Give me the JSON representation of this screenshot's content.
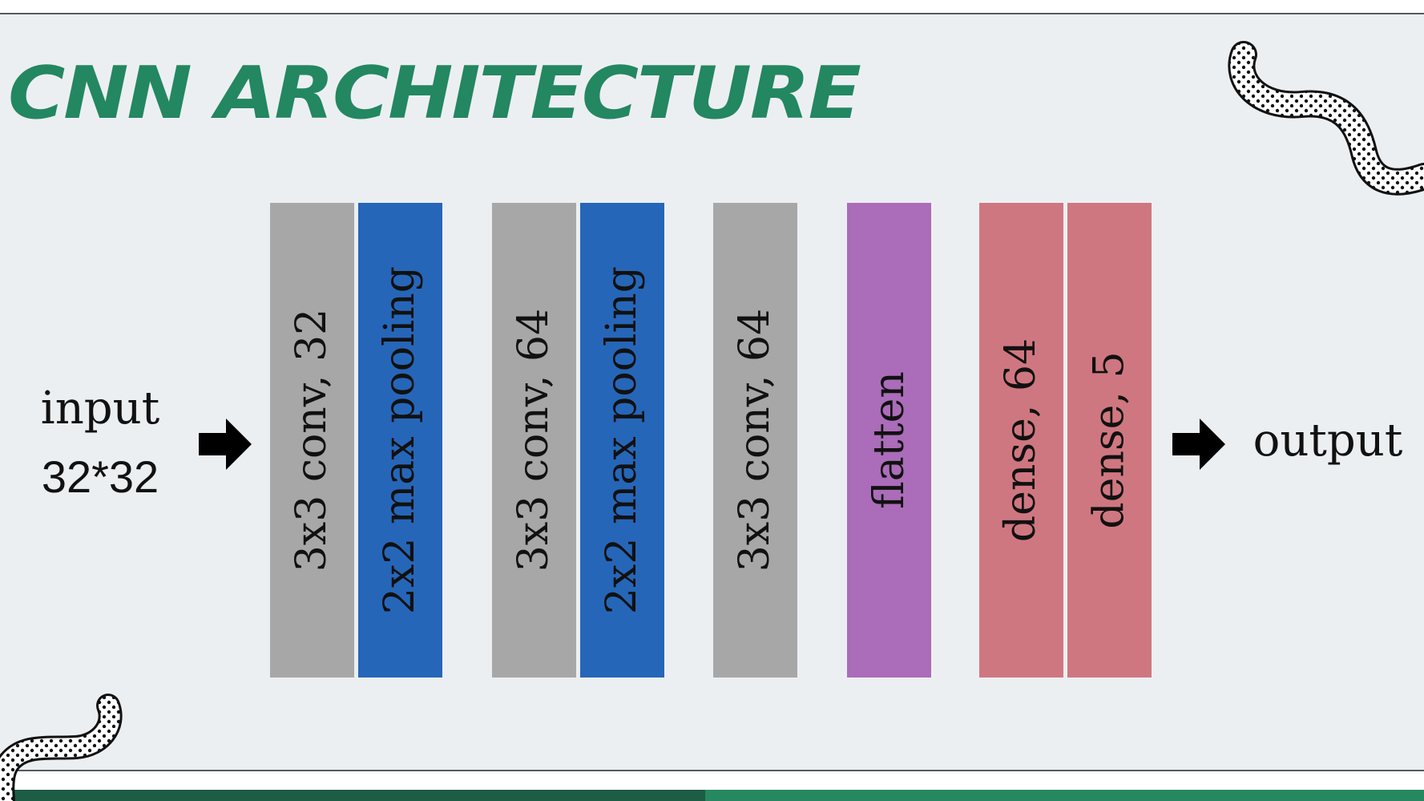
{
  "title": "CNN ARCHITECTURE",
  "input": {
    "label": "input",
    "size": "32*32"
  },
  "output": {
    "label": "output"
  },
  "colors": {
    "title": "#238761",
    "conv": "#a7a7a7",
    "pool": "#2666b8",
    "flatten": "#ab6cb9",
    "dense": "#cf7780",
    "background": "#eceff2"
  },
  "layers": [
    {
      "label": "3x3 conv, 32",
      "kind": "conv"
    },
    {
      "label": "2x2 max pooling",
      "kind": "pool"
    },
    {
      "label": "3x3 conv, 64",
      "kind": "conv"
    },
    {
      "label": "2x2 max pooling",
      "kind": "pool"
    },
    {
      "label": "3x3 conv, 64",
      "kind": "conv"
    },
    {
      "label": "flatten",
      "kind": "flatten"
    },
    {
      "label": "dense, 64",
      "kind": "dense"
    },
    {
      "label": "dense, 5",
      "kind": "dense"
    }
  ]
}
